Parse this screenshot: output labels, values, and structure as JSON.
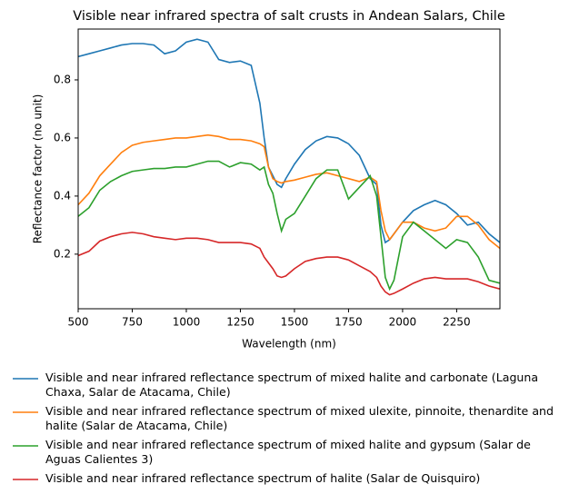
{
  "chart_data": {
    "type": "line",
    "title": "Visible near infrared spectra of salt crusts in Andean Salars, Chile",
    "x_label": "Wavelength (nm)",
    "y_label": "Reflectance factor (no unit)",
    "x": [
      500,
      550,
      600,
      650,
      700,
      750,
      800,
      850,
      900,
      950,
      1000,
      1050,
      1100,
      1150,
      1200,
      1250,
      1300,
      1340,
      1360,
      1380,
      1400,
      1420,
      1440,
      1460,
      1500,
      1550,
      1600,
      1650,
      1700,
      1750,
      1800,
      1850,
      1880,
      1900,
      1920,
      1940,
      1960,
      2000,
      2050,
      2100,
      2150,
      2200,
      2250,
      2300,
      2350,
      2400,
      2450
    ],
    "series": [
      {
        "name": "Visible and near infrared reflectance spectrum of mixed halite and carbonate (Laguna Chaxa, Salar de Atacama, Chile)",
        "color": "#1f77b4",
        "values": [
          0.88,
          0.89,
          0.9,
          0.91,
          0.92,
          0.925,
          0.925,
          0.92,
          0.89,
          0.9,
          0.93,
          0.94,
          0.93,
          0.87,
          0.86,
          0.865,
          0.85,
          0.72,
          0.6,
          0.5,
          0.47,
          0.44,
          0.43,
          0.46,
          0.51,
          0.56,
          0.59,
          0.605,
          0.6,
          0.58,
          0.54,
          0.46,
          0.44,
          0.3,
          0.24,
          0.25,
          0.27,
          0.31,
          0.35,
          0.37,
          0.385,
          0.37,
          0.34,
          0.3,
          0.31,
          0.27,
          0.24
        ]
      },
      {
        "name": "Visible and near infrared reflectance spectrum of mixed ulexite, pinnoite, thenardite and halite (Salar de Atacama, Chile)",
        "color": "#ff7f0e",
        "values": [
          0.37,
          0.41,
          0.47,
          0.51,
          0.55,
          0.575,
          0.585,
          0.59,
          0.595,
          0.6,
          0.6,
          0.605,
          0.61,
          0.605,
          0.595,
          0.595,
          0.59,
          0.58,
          0.57,
          0.5,
          0.46,
          0.45,
          0.445,
          0.45,
          0.455,
          0.465,
          0.475,
          0.48,
          0.47,
          0.46,
          0.45,
          0.465,
          0.45,
          0.35,
          0.28,
          0.25,
          0.27,
          0.31,
          0.31,
          0.29,
          0.28,
          0.29,
          0.33,
          0.33,
          0.3,
          0.25,
          0.22
        ]
      },
      {
        "name": "Visible and near infrared reflectance spectrum of mixed halite and gypsum (Salar de Aguas Calientes 3)",
        "color": "#2ca02c",
        "values": [
          0.33,
          0.36,
          0.42,
          0.45,
          0.47,
          0.485,
          0.49,
          0.495,
          0.495,
          0.5,
          0.5,
          0.51,
          0.52,
          0.52,
          0.5,
          0.515,
          0.51,
          0.49,
          0.5,
          0.44,
          0.41,
          0.34,
          0.28,
          0.32,
          0.34,
          0.4,
          0.46,
          0.49,
          0.49,
          0.39,
          0.43,
          0.47,
          0.4,
          0.26,
          0.12,
          0.08,
          0.11,
          0.26,
          0.31,
          0.28,
          0.25,
          0.22,
          0.25,
          0.24,
          0.19,
          0.11,
          0.1
        ]
      },
      {
        "name": "Visible and near infrared reflectance spectrum of halite (Salar de Quisquiro)",
        "color": "#d62728",
        "values": [
          0.195,
          0.21,
          0.245,
          0.26,
          0.27,
          0.275,
          0.27,
          0.26,
          0.255,
          0.25,
          0.255,
          0.255,
          0.25,
          0.24,
          0.24,
          0.24,
          0.235,
          0.22,
          0.19,
          0.17,
          0.15,
          0.125,
          0.12,
          0.125,
          0.15,
          0.175,
          0.185,
          0.19,
          0.19,
          0.18,
          0.16,
          0.14,
          0.12,
          0.09,
          0.07,
          0.06,
          0.065,
          0.08,
          0.1,
          0.115,
          0.12,
          0.115,
          0.115,
          0.115,
          0.105,
          0.09,
          0.08
        ]
      }
    ],
    "xlim": [
      500,
      2450
    ],
    "xticks": [
      500,
      750,
      1000,
      1250,
      1500,
      1750,
      2000,
      2250
    ],
    "ylim": [
      0.012,
      0.975
    ],
    "yticks": [
      0.2,
      0.4,
      0.6,
      0.8
    ],
    "grid": false,
    "legend": "below"
  }
}
